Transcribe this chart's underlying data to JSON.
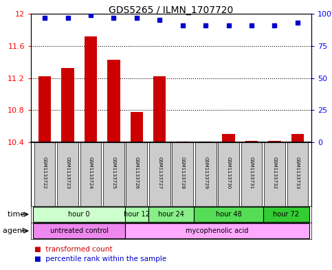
{
  "title": "GDS5265 / ILMN_1707720",
  "samples": [
    "GSM1133722",
    "GSM1133723",
    "GSM1133724",
    "GSM1133725",
    "GSM1133726",
    "GSM1133727",
    "GSM1133728",
    "GSM1133729",
    "GSM1133730",
    "GSM1133731",
    "GSM1133732",
    "GSM1133733"
  ],
  "transformed_count": [
    11.22,
    11.32,
    11.72,
    11.43,
    10.78,
    11.22,
    10.41,
    10.41,
    10.5,
    10.42,
    10.42,
    10.5
  ],
  "percentile_rank": [
    97,
    97,
    99,
    97,
    97,
    95,
    91,
    91,
    91,
    91,
    91,
    93
  ],
  "ylim_left": [
    10.4,
    12.0
  ],
  "ylim_right": [
    0,
    100
  ],
  "yticks_left": [
    10.4,
    10.8,
    11.2,
    11.6,
    12.0
  ],
  "ytick_labels_left": [
    "10.4",
    "10.8",
    "11.2",
    "11.6",
    "12"
  ],
  "yticks_right": [
    0,
    25,
    50,
    75,
    100
  ],
  "ytick_labels_right": [
    "0",
    "25",
    "50",
    "75",
    "100%"
  ],
  "bar_color": "#cc0000",
  "dot_color": "#0000cc",
  "time_groups": [
    {
      "label": "hour 0",
      "start": 0,
      "end": 3,
      "color": "#ccffcc"
    },
    {
      "label": "hour 12",
      "start": 4,
      "end": 4,
      "color": "#aaffaa"
    },
    {
      "label": "hour 24",
      "start": 5,
      "end": 6,
      "color": "#88ee88"
    },
    {
      "label": "hour 48",
      "start": 7,
      "end": 9,
      "color": "#55dd55"
    },
    {
      "label": "hour 72",
      "start": 10,
      "end": 11,
      "color": "#33cc33"
    }
  ],
  "agent_groups": [
    {
      "label": "untreated control",
      "start": 0,
      "end": 3,
      "color": "#ee88ee"
    },
    {
      "label": "mycophenolic acid",
      "start": 4,
      "end": 11,
      "color": "#ffaaff"
    }
  ],
  "sample_box_color": "#cccccc",
  "legend_bar_label": "transformed count",
  "legend_dot_label": "percentile rank within the sample",
  "time_label": "time",
  "agent_label": "agent",
  "background_color": "#ffffff",
  "fig_width": 4.83,
  "fig_height": 3.93,
  "dpi": 100
}
